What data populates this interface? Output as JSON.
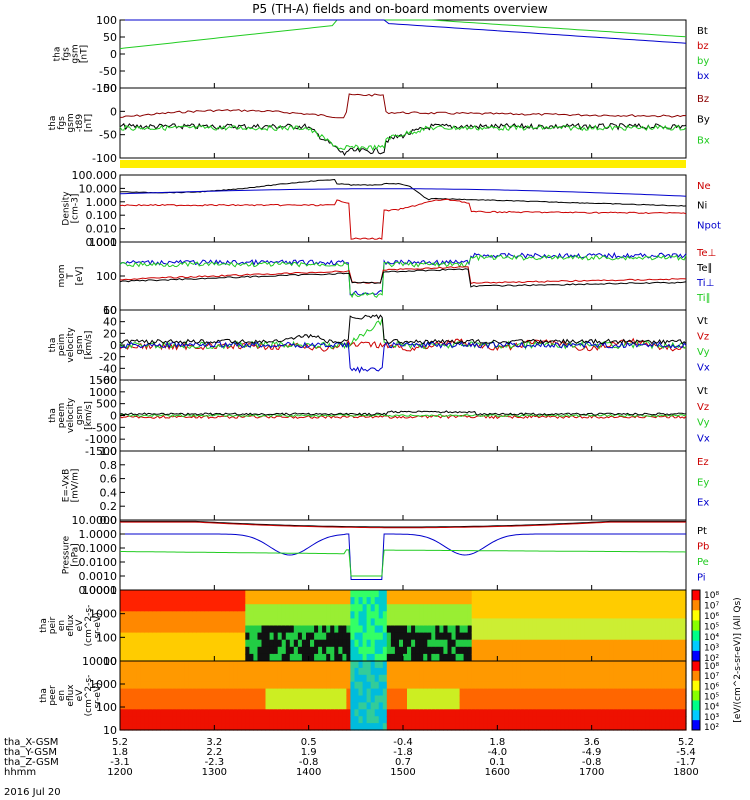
{
  "title": "P5 (TH-A) fields and on-board moments overview",
  "colors": {
    "black": "#000000",
    "red": "#cc0000",
    "darkred": "#8b0000",
    "green": "#22cc22",
    "blue": "#0000cc",
    "yellow": "#ffee00"
  },
  "chart_data": [
    {
      "type": "line",
      "panel": "fgs",
      "ylabel": [
        "tha",
        "fgs",
        "gsm",
        "[nT]"
      ],
      "ylim": [
        -100,
        100
      ],
      "yticks": [
        "100",
        "50",
        "0",
        "-50",
        "-100"
      ],
      "legend": [
        {
          "label": "Bt",
          "color": "#000000"
        },
        {
          "label": "bz",
          "color": "#cc0000"
        },
        {
          "label": "by",
          "color": "#22cc22"
        },
        {
          "label": "bx",
          "color": "#0000cc"
        }
      ]
    },
    {
      "type": "line",
      "panel": "fgs-detrend",
      "ylabel": [
        "tha",
        "fgs",
        "gsm",
        "-t89",
        "[nT]"
      ],
      "ylim": [
        -130,
        80
      ],
      "yticks": [
        "50",
        "0",
        "-50",
        "-100"
      ],
      "legend": [
        {
          "label": "Bz",
          "color": "#8b0000"
        },
        {
          "label": "By",
          "color": "#000000"
        },
        {
          "label": "Bx",
          "color": "#22cc22"
        }
      ]
    },
    {
      "type": "line",
      "panel": "density",
      "ylabel": [
        "Density",
        "[cm-3]"
      ],
      "ylim": [
        0.001,
        300
      ],
      "log": true,
      "yticks": [
        "100.000",
        "10.000",
        "1.000",
        "0.100",
        "0.010",
        "0.001"
      ],
      "legend": [
        {
          "label": "Ne",
          "color": "#cc0000"
        },
        {
          "label": "Ni",
          "color": "#000000"
        },
        {
          "label": "Npot",
          "color": "#0000cc"
        }
      ]
    },
    {
      "type": "line",
      "panel": "temperature",
      "ylabel": [
        "mom",
        "T",
        "[eV]"
      ],
      "ylim": [
        5,
        8000
      ],
      "log": true,
      "yticks": [
        "1000",
        "100",
        "10"
      ],
      "legend": [
        {
          "label": "Te⊥",
          "color": "#cc0000"
        },
        {
          "label": "Te∥",
          "color": "#000000"
        },
        {
          "label": "Ti⊥",
          "color": "#0000cc"
        },
        {
          "label": "Ti∥",
          "color": "#22cc22"
        }
      ]
    },
    {
      "type": "line",
      "panel": "peim-velocity",
      "ylabel": [
        "tha",
        "peim",
        "velocity",
        "gsm",
        "[km/s]"
      ],
      "ylim": [
        -60,
        60
      ],
      "yticks": [
        "60",
        "40",
        "20",
        "0",
        "-20",
        "-40",
        "-60"
      ],
      "legend": [
        {
          "label": "Vt",
          "color": "#000000"
        },
        {
          "label": "Vz",
          "color": "#cc0000"
        },
        {
          "label": "Vy",
          "color": "#22cc22"
        },
        {
          "label": "Vx",
          "color": "#0000cc"
        }
      ]
    },
    {
      "type": "line",
      "panel": "peem-velocity",
      "ylabel": [
        "tha",
        "peem",
        "velocity",
        "gsm",
        "[km/s]"
      ],
      "ylim": [
        -1500,
        1500
      ],
      "yticks": [
        "1500",
        "1000",
        "500",
        "0",
        "-500",
        "-1000",
        "-1500"
      ],
      "legend": [
        {
          "label": "Vt",
          "color": "#000000"
        },
        {
          "label": "Vz",
          "color": "#cc0000"
        },
        {
          "label": "Vy",
          "color": "#22cc22"
        },
        {
          "label": "Vx",
          "color": "#0000cc"
        }
      ]
    },
    {
      "type": "line",
      "panel": "efield",
      "ylabel": [
        "E=-VxB",
        "[mV/m]"
      ],
      "ylim": [
        0,
        1
      ],
      "yticks": [
        "1.0",
        "0.8",
        "0.6",
        "0.4",
        "0.2",
        "0.0"
      ],
      "legend": [
        {
          "label": "Ez",
          "color": "#cc0000"
        },
        {
          "label": "Ey",
          "color": "#22cc22"
        },
        {
          "label": "Ex",
          "color": "#0000cc"
        }
      ]
    },
    {
      "type": "line",
      "panel": "pressure",
      "ylabel": [
        "Pressure",
        "[nPa]"
      ],
      "ylim": [
        0.0001,
        20
      ],
      "log": true,
      "yticks": [
        "10.0000",
        "1.0000",
        "0.1000",
        "0.0100",
        "0.0010",
        "0.0001"
      ],
      "legend": [
        {
          "label": "Pt",
          "color": "#000000"
        },
        {
          "label": "Pb",
          "color": "#cc0000"
        },
        {
          "label": "Pe",
          "color": "#22cc22"
        },
        {
          "label": "Pi",
          "color": "#0000cc"
        }
      ]
    },
    {
      "type": "heatmap",
      "panel": "peir",
      "ylabel": [
        "tha",
        "peir",
        "en",
        "eflux",
        "eV",
        "(cm^2-s-",
        "sr-eV)"
      ],
      "yticks": [
        "10000",
        "1000",
        "100",
        "10"
      ]
    },
    {
      "type": "heatmap",
      "panel": "peer",
      "ylabel": [
        "tha",
        "peer",
        "en",
        "eflux",
        "eV",
        "(cm^2-s-",
        "sr-eV)"
      ],
      "yticks": [
        "10000",
        "1000",
        "100",
        "10"
      ]
    }
  ],
  "colorbar": {
    "ticks": [
      "10⁸",
      "10⁷",
      "10⁶",
      "10⁵",
      "10⁴",
      "10³",
      "10²"
    ],
    "label": "[eV/(cm^2-s-sr-eV)] (All Qs)"
  },
  "xaxis": {
    "rows": [
      {
        "label": "tha_X-GSM",
        "values": [
          "5.2",
          "3.2",
          "0.5",
          "-0.4",
          "1.8",
          "3.6",
          "5.2"
        ]
      },
      {
        "label": "tha_Y-GSM",
        "values": [
          "1.8",
          "2.2",
          "1.9",
          "-1.8",
          "-4.0",
          "-4.9",
          "-5.4"
        ]
      },
      {
        "label": "tha_Z-GSM",
        "values": [
          "-3.1",
          "-2.3",
          "-0.8",
          "0.7",
          "0.1",
          "-0.8",
          "-1.7"
        ]
      },
      {
        "label": "hhmm",
        "values": [
          "1200",
          "1300",
          "1400",
          "1500",
          "1600",
          "1700",
          "1800"
        ]
      }
    ],
    "date": "2016 Jul 20"
  }
}
